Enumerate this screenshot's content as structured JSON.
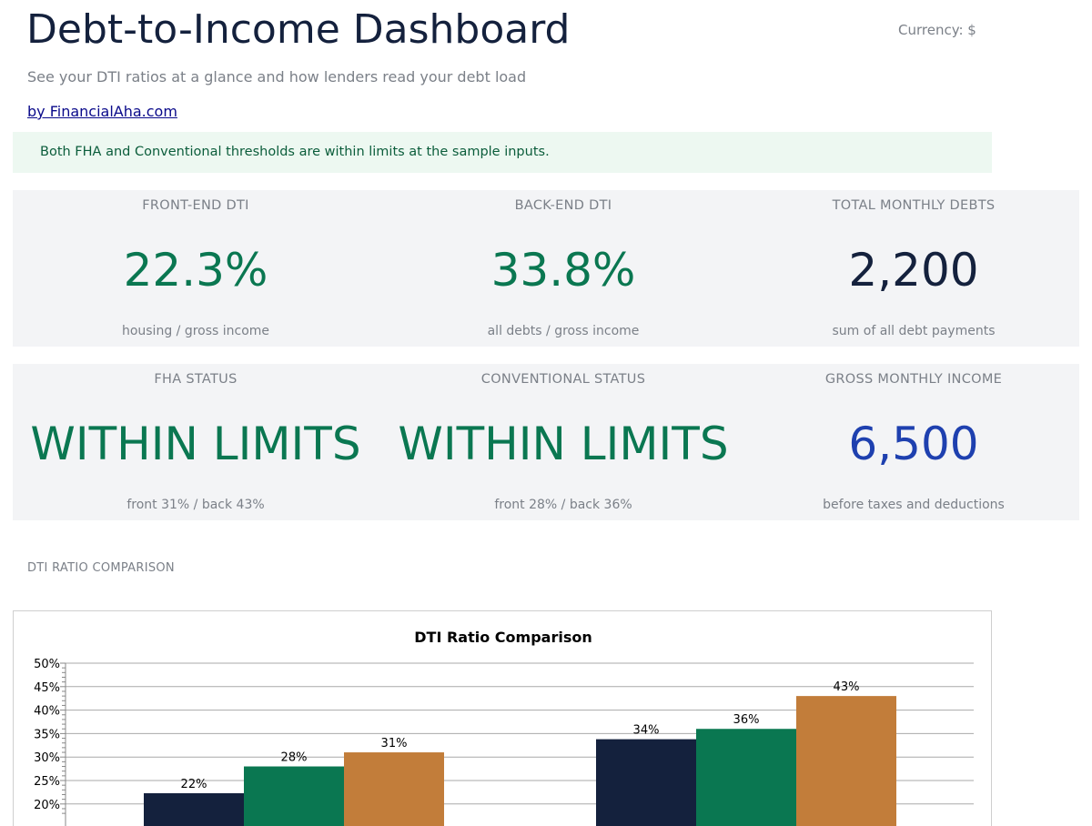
{
  "header": {
    "title": "Debt-to-Income Dashboard",
    "currency": "Currency: $",
    "subtitle": "See your DTI ratios at a glance and how lenders read your debt load",
    "byline": "by FinancialAha.com"
  },
  "banner": {
    "text": "Both FHA and Conventional thresholds are within limits at the sample inputs."
  },
  "metrics": {
    "front_end": {
      "label": "FRONT-END DTI",
      "value": "22.3%",
      "note": "housing / gross income"
    },
    "back_end": {
      "label": "BACK-END DTI",
      "value": "33.8%",
      "note": "all debts / gross income"
    },
    "total_debts": {
      "label": "TOTAL MONTHLY DEBTS",
      "value": "2,200",
      "note": "sum of all debt payments"
    },
    "fha": {
      "label": "FHA STATUS",
      "value": "WITHIN LIMITS",
      "note": "front 31% / back 43%"
    },
    "conventional": {
      "label": "CONVENTIONAL STATUS",
      "value": "WITHIN LIMITS",
      "note": "front 28% / back 36%"
    },
    "income": {
      "label": "GROSS MONTHLY INCOME",
      "value": "6,500",
      "note": "before taxes and deductions"
    }
  },
  "colors": {
    "navy": "#14213d",
    "green": "#0a7751",
    "orange": "#c27d3a",
    "blue": "#1e40af"
  },
  "section_label": "DTI RATIO COMPARISON",
  "chart_data": {
    "type": "bar",
    "title": "DTI Ratio Comparison",
    "xlabel": "",
    "ylabel": "",
    "groups": 2,
    "series": [
      {
        "values": [
          22.3,
          33.8
        ],
        "labels": [
          "22%",
          "34%"
        ],
        "color": "#14213d"
      },
      {
        "values": [
          28,
          36
        ],
        "labels": [
          "28%",
          "36%"
        ],
        "color": "#0a7751"
      },
      {
        "values": [
          31,
          43
        ],
        "labels": [
          "31%",
          "43%"
        ],
        "color": "#c27d3a"
      }
    ],
    "yticks": [
      20,
      25,
      30,
      35,
      40,
      45,
      50
    ],
    "ytick_labels": [
      "20%",
      "25%",
      "30%",
      "35%",
      "40%",
      "45%",
      "50%"
    ],
    "ylim": [
      18,
      50
    ],
    "grid": true,
    "legend": "none"
  }
}
